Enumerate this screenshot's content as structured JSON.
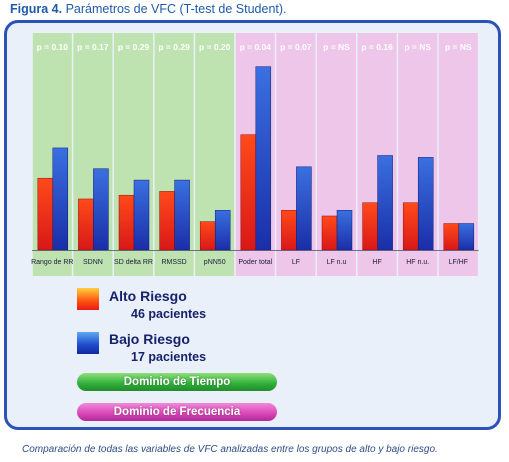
{
  "figure": {
    "label": "Figura 4.",
    "title": "Parámetros de VFC (T-test de Student)."
  },
  "caption": "Comparación de todas las variables de VFC analizadas entre los grupos de alto y bajo riesgo.",
  "colors": {
    "time_domain_band": "#bfe3b0",
    "freq_domain_band": "#eec6ea",
    "alto_riesgo": "#e8301a",
    "bajo_riesgo": "#2040c0",
    "frame": "#2a52b8",
    "text": "#16226a"
  },
  "chart_data": {
    "type": "bar",
    "title": "",
    "xlabel": "",
    "ylabel": "",
    "grid": false,
    "categories": [
      "Rango de RR",
      "SDNN",
      "SD delta RR",
      "RMSSD",
      "pNN50",
      "Poder total",
      "LF",
      "LF n.u",
      "HF",
      "HF n.u.",
      "LF/HF"
    ],
    "p_values": [
      "p = 0.10",
      "p = 0.17",
      "p = 0.29",
      "p = 0.29",
      "p = 0.20",
      "p = 0.04",
      "p = 0.07",
      "p = NS",
      "p = 0.16",
      "p = NS",
      "p = NS"
    ],
    "domains": [
      "time",
      "time",
      "time",
      "time",
      "time",
      "freq",
      "freq",
      "freq",
      "freq",
      "freq",
      "freq"
    ],
    "series": [
      {
        "name": "Alto Riesgo",
        "values": [
          38,
          27,
          29,
          31,
          15,
          61,
          21,
          18,
          25,
          25,
          14
        ]
      },
      {
        "name": "Bajo Riesgo",
        "values": [
          54,
          43,
          37,
          37,
          21,
          97,
          44,
          21,
          50,
          49,
          14
        ]
      }
    ],
    "ylim": [
      0,
      100
    ],
    "legend": [
      {
        "name": "Alto Riesgo",
        "sub": "46 pacientes",
        "color": "red"
      },
      {
        "name": "Bajo Riesgo",
        "sub": "17 pacientes",
        "color": "blue"
      }
    ],
    "domain_labels": {
      "time": "Dominio de Tiempo",
      "freq": "Dominio de Frecuencia"
    }
  }
}
